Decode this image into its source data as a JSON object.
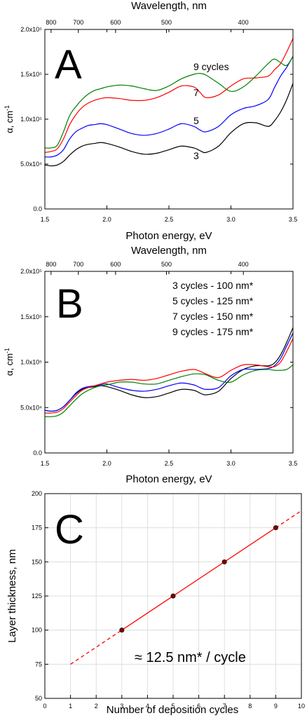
{
  "colors": {
    "black": "#000000",
    "blue": "#0000ff",
    "red": "#ff0000",
    "green": "#008000"
  },
  "chart_data": [
    {
      "type": "line",
      "panel_letter": "A",
      "top_axis_title": "Wavelength, nm",
      "top_ticks": [
        {
          "label": "800",
          "energy": 1.55
        },
        {
          "label": "700",
          "energy": 1.77
        },
        {
          "label": "600",
          "energy": 2.07
        },
        {
          "label": "500",
          "energy": 2.48
        },
        {
          "label": "400",
          "energy": 3.1
        }
      ],
      "xlabel": "Photon energy, eV",
      "ylabel": "α, cm",
      "ylabel_exponent": "-1",
      "xlim": [
        1.5,
        3.5
      ],
      "ylim": [
        0,
        200000
      ],
      "xticks": [
        {
          "v": 1.5,
          "label": "1.5"
        },
        {
          "v": 2.0,
          "label": "2.0"
        },
        {
          "v": 2.5,
          "label": "2.5"
        },
        {
          "v": 3.0,
          "label": "3.0"
        },
        {
          "v": 3.5,
          "label": "3.5"
        }
      ],
      "yticks": [
        {
          "v": 0,
          "label": "0.0"
        },
        {
          "v": 50000,
          "label": "5.0x10⁴"
        },
        {
          "v": 100000,
          "label": "1.0x10⁵"
        },
        {
          "v": 150000,
          "label": "1.5x10⁵"
        },
        {
          "v": 200000,
          "label": "2.0x10⁵"
        }
      ],
      "x": [
        1.5,
        1.55,
        1.6,
        1.65,
        1.7,
        1.75,
        1.8,
        1.85,
        1.9,
        1.95,
        2.0,
        2.1,
        2.2,
        2.3,
        2.4,
        2.5,
        2.6,
        2.7,
        2.75,
        2.8,
        2.9,
        3.0,
        3.1,
        3.2,
        3.3,
        3.35,
        3.4,
        3.45,
        3.5
      ],
      "series": [
        {
          "label": "3",
          "color": "#000000",
          "values": [
            49000,
            48000,
            49000,
            53000,
            60000,
            66000,
            70000,
            72000,
            73000,
            74000,
            73000,
            69000,
            64000,
            61000,
            62000,
            66000,
            70000,
            68000,
            65000,
            63000,
            70000,
            85000,
            95000,
            96000,
            92000,
            98000,
            108000,
            122000,
            140000
          ]
        },
        {
          "label": "5",
          "color": "#0000ff",
          "values": [
            58000,
            58000,
            60000,
            66000,
            78000,
            86000,
            90000,
            93000,
            94000,
            95000,
            94000,
            89000,
            84000,
            82000,
            84000,
            89000,
            95000,
            92000,
            88000,
            86000,
            92000,
            105000,
            112000,
            115000,
            122000,
            135000,
            148000,
            158000,
            170000
          ]
        },
        {
          "label": "7",
          "color": "#ff0000",
          "values": [
            63000,
            64000,
            67000,
            78000,
            94000,
            105000,
            113000,
            118000,
            121000,
            123000,
            124000,
            123000,
            121000,
            121000,
            124000,
            130000,
            137000,
            136000,
            130000,
            124000,
            127000,
            137000,
            145000,
            146000,
            148000,
            155000,
            162000,
            175000,
            190000
          ]
        },
        {
          "label": "9 cycles",
          "color": "#008000",
          "values": [
            68000,
            68000,
            71000,
            86000,
            104000,
            114000,
            122000,
            128000,
            132000,
            134000,
            136000,
            138000,
            137000,
            134000,
            132000,
            137000,
            145000,
            150000,
            151000,
            149000,
            140000,
            131000,
            136000,
            148000,
            162000,
            167000,
            163000,
            160000,
            170000
          ]
        }
      ]
    },
    {
      "type": "line",
      "panel_letter": "B",
      "top_axis_title": "Wavelength, nm",
      "top_ticks": [
        {
          "label": "800",
          "energy": 1.55
        },
        {
          "label": "700",
          "energy": 1.77
        },
        {
          "label": "600",
          "energy": 2.07
        },
        {
          "label": "500",
          "energy": 2.48
        },
        {
          "label": "400",
          "energy": 3.1
        }
      ],
      "xlabel": "Photon energy, eV",
      "ylabel": "α, cm",
      "ylabel_exponent": "-1",
      "xlim": [
        1.5,
        3.5
      ],
      "ylim": [
        0,
        200000
      ],
      "xticks": [
        {
          "v": 1.5,
          "label": "1.5"
        },
        {
          "v": 2.0,
          "label": "2.0"
        },
        {
          "v": 2.5,
          "label": "2.5"
        },
        {
          "v": 3.0,
          "label": "3.0"
        },
        {
          "v": 3.5,
          "label": "3.5"
        }
      ],
      "yticks": [
        {
          "v": 0,
          "label": "0.0"
        },
        {
          "v": 50000,
          "label": "5.0x10⁴"
        },
        {
          "v": 100000,
          "label": "1.0x10⁵"
        },
        {
          "v": 150000,
          "label": "1.5x10⁵"
        },
        {
          "v": 200000,
          "label": "2.0x10⁵"
        }
      ],
      "legend": [
        "3 cycles - 100 nm*",
        "5 cycles - 125 nm*",
        "7 cycles - 150 nm*",
        "9 cycles - 175 nm*"
      ],
      "x": [
        1.5,
        1.55,
        1.6,
        1.65,
        1.7,
        1.75,
        1.8,
        1.85,
        1.9,
        1.95,
        2.0,
        2.1,
        2.2,
        2.3,
        2.4,
        2.5,
        2.6,
        2.7,
        2.75,
        2.8,
        2.9,
        3.0,
        3.1,
        3.2,
        3.3,
        3.35,
        3.4,
        3.45,
        3.5
      ],
      "series": [
        {
          "name": "3 cycles - 100 nm*",
          "color": "#000000",
          "values": [
            47000,
            46000,
            47000,
            51000,
            58000,
            65000,
            70000,
            72000,
            73000,
            74000,
            73000,
            69000,
            64000,
            61000,
            62000,
            66000,
            70000,
            69000,
            66000,
            64000,
            68000,
            82000,
            92000,
            96000,
            96000,
            99000,
            108000,
            122000,
            138000
          ]
        },
        {
          "name": "5 cycles - 125 nm*",
          "color": "#0000ff",
          "values": [
            47000,
            46000,
            47000,
            51000,
            58000,
            66000,
            71000,
            73000,
            74000,
            75000,
            76000,
            72000,
            69000,
            68000,
            70000,
            74000,
            77000,
            75000,
            72000,
            70000,
            72000,
            85000,
            92000,
            92000,
            93000,
            96000,
            104000,
            118000,
            132000
          ]
        },
        {
          "name": "7 cycles - 150 nm*",
          "color": "#ff0000",
          "values": [
            44000,
            44000,
            45000,
            49000,
            56000,
            63000,
            69000,
            72000,
            74000,
            76000,
            78000,
            80000,
            81000,
            80000,
            82000,
            86000,
            90000,
            92000,
            90000,
            87000,
            83000,
            91000,
            97000,
            97000,
            95000,
            95000,
            100000,
            112000,
            126000
          ]
        },
        {
          "name": "9 cycles - 175 nm*",
          "color": "#008000",
          "values": [
            40000,
            40000,
            41000,
            45000,
            52000,
            59000,
            65000,
            69000,
            72000,
            74000,
            75000,
            78000,
            78000,
            76000,
            76000,
            80000,
            84000,
            87000,
            87000,
            86000,
            80000,
            78000,
            86000,
            91000,
            92000,
            91000,
            91000,
            92000,
            97000
          ]
        }
      ]
    },
    {
      "type": "scatter",
      "panel_letter": "C",
      "xlabel": "Number of deposition cycles",
      "ylabel": "Layer thickness, nm",
      "xlim": [
        0,
        10
      ],
      "ylim": [
        50,
        200
      ],
      "grid": true,
      "xticks": [
        {
          "v": 0,
          "label": "0"
        },
        {
          "v": 1,
          "label": "1"
        },
        {
          "v": 2,
          "label": "2"
        },
        {
          "v": 3,
          "label": "3"
        },
        {
          "v": 4,
          "label": "4"
        },
        {
          "v": 5,
          "label": "5"
        },
        {
          "v": 6,
          "label": "6"
        },
        {
          "v": 7,
          "label": "7"
        },
        {
          "v": 8,
          "label": "8"
        },
        {
          "v": 9,
          "label": "9"
        },
        {
          "v": 10,
          "label": "10"
        }
      ],
      "yticks": [
        {
          "v": 50,
          "label": "50"
        },
        {
          "v": 75,
          "label": "75"
        },
        {
          "v": 100,
          "label": "100"
        },
        {
          "v": 125,
          "label": "125"
        },
        {
          "v": 150,
          "label": "150"
        },
        {
          "v": 175,
          "label": "175"
        },
        {
          "v": 200,
          "label": "200"
        }
      ],
      "points": [
        {
          "x": 3,
          "y": 100
        },
        {
          "x": 5,
          "y": 125
        },
        {
          "x": 7,
          "y": 150
        },
        {
          "x": 9,
          "y": 175
        }
      ],
      "fit": {
        "slope": 12.5,
        "intercept": 62.5,
        "solid_x": [
          3,
          9
        ],
        "dashed_left_x": [
          1,
          3
        ],
        "dashed_right_x": [
          9,
          10
        ]
      },
      "annotation": "≈ 12.5 nm* / cycle"
    }
  ]
}
